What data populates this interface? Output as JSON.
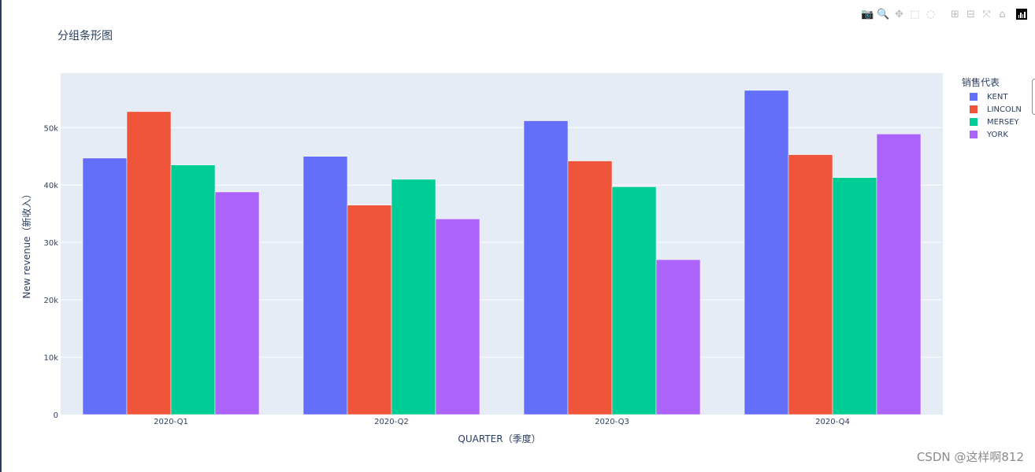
{
  "modebar": {
    "icons": [
      "camera-icon",
      "zoom-icon",
      "pan-icon",
      "box-select-icon",
      "lasso-select-icon",
      "zoom-in-icon",
      "zoom-out-icon",
      "autoscale-icon",
      "reset-axes-icon",
      "plotly-logo-icon"
    ]
  },
  "chart_data": {
    "type": "bar",
    "barmode": "group",
    "title": "分组条形图",
    "xlabel": "QUARTER（季度）",
    "ylabel": "New revenue（新收入）",
    "categories": [
      "2020-Q1",
      "2020-Q2",
      "2020-Q3",
      "2020-Q4"
    ],
    "series": [
      {
        "name": "KENT",
        "color": "#636efa",
        "values": [
          44700,
          45000,
          51200,
          56500
        ]
      },
      {
        "name": "LINCOLN",
        "color": "#ef553b",
        "values": [
          52800,
          36500,
          44200,
          45300
        ]
      },
      {
        "name": "MERSEY",
        "color": "#00cc96",
        "values": [
          43500,
          41000,
          39700,
          41300
        ]
      },
      {
        "name": "YORK",
        "color": "#ab63fa",
        "values": [
          38800,
          34100,
          27000,
          48900
        ]
      }
    ],
    "ylim": [
      0,
      59500
    ],
    "yticks": [
      0,
      10000,
      20000,
      30000,
      40000,
      50000
    ],
    "ytick_labels": [
      "0",
      "10k",
      "20k",
      "30k",
      "40k",
      "50k"
    ],
    "legend_title": "销售代表",
    "legend_position": "top-right outside",
    "grid": true,
    "plot_background": "#e5ecf6"
  },
  "watermark": "CSDN @这样啊812"
}
